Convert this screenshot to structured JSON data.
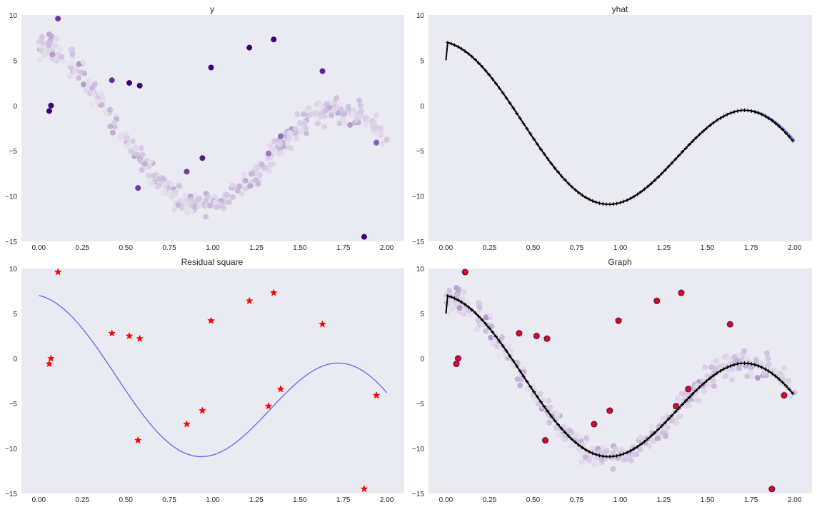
{
  "figure": {
    "panels": 4
  },
  "colors": {
    "plot_bg": "#eaeaf2",
    "grid": "#ffffff",
    "fit_line": "#6a6ef2",
    "predict_line": "#000000",
    "outlier_star": "#ff0000",
    "purple_light": "#efedf5",
    "purple_dark": "#3f007d"
  },
  "chart_data": [
    {
      "type": "scatter",
      "title": "y",
      "xlabel": "",
      "ylabel": "",
      "xlim": [
        -0.1,
        2.1
      ],
      "ylim": [
        -15,
        10
      ],
      "xticks": [
        "0.00",
        "0.25",
        "0.50",
        "0.75",
        "1.00",
        "1.25",
        "1.50",
        "1.75",
        "2.00"
      ],
      "yticks": [
        "10",
        "5",
        "0",
        "−5",
        "−10",
        "−15"
      ],
      "grid": false,
      "series": [
        {
          "kind": "noisy_points",
          "colormap": "Purples",
          "points_description_values": "dense band following y=f(x), x 0–2"
        },
        {
          "kind": "outliers",
          "colormap": "Purples",
          "x": [
            0.06,
            0.07,
            0.11,
            0.42,
            0.52,
            0.57,
            0.58,
            0.85,
            0.94,
            0.99,
            1.21,
            1.32,
            1.35,
            1.39,
            1.63,
            1.87,
            1.94
          ],
          "y": [
            -0.6,
            0.0,
            9.6,
            2.8,
            2.5,
            -9.1,
            2.2,
            -7.3,
            -5.8,
            4.2,
            6.4,
            -5.3,
            7.3,
            -3.4,
            3.8,
            -14.5,
            -4.1
          ]
        }
      ]
    },
    {
      "type": "line",
      "title": "yhat",
      "xlabel": "",
      "ylabel": "",
      "xlim": [
        -0.1,
        2.1
      ],
      "ylim": [
        -15,
        10
      ],
      "xticks": [
        "0.00",
        "0.25",
        "0.50",
        "0.75",
        "1.00",
        "1.25",
        "1.50",
        "1.75",
        "2.00"
      ],
      "yticks": [
        "10",
        "5",
        "0",
        "−5",
        "−10",
        "−15"
      ],
      "grid": false,
      "series": [
        {
          "kind": "true_curve",
          "color": "#6a6ef2"
        },
        {
          "kind": "predicted_curve_with_markers",
          "color": "#000000"
        }
      ]
    },
    {
      "type": "scatter",
      "title": "Residual square",
      "xlabel": "",
      "ylabel": "",
      "xlim": [
        -0.1,
        2.1
      ],
      "ylim": [
        -15,
        10
      ],
      "xticks": [
        "0.00",
        "0.25",
        "0.50",
        "0.75",
        "1.00",
        "1.25",
        "1.50",
        "1.75",
        "2.00"
      ],
      "yticks": [
        "10",
        "5",
        "0",
        "−5",
        "−10",
        "−15"
      ],
      "grid": false,
      "series": [
        {
          "kind": "true_curve",
          "color": "#6a6ef2"
        },
        {
          "kind": "outlier_stars",
          "color": "#ff0000",
          "x": [
            0.06,
            0.07,
            0.11,
            0.42,
            0.52,
            0.57,
            0.58,
            0.85,
            0.94,
            0.99,
            1.21,
            1.32,
            1.35,
            1.39,
            1.63,
            1.87,
            1.94
          ],
          "y": [
            -0.6,
            0.0,
            9.6,
            2.8,
            2.5,
            -9.1,
            2.2,
            -7.3,
            -5.8,
            4.2,
            6.4,
            -5.3,
            7.3,
            -3.4,
            3.8,
            -14.5,
            -4.1
          ]
        }
      ]
    },
    {
      "type": "scatter",
      "title": "Graph",
      "xlabel": "",
      "ylabel": "",
      "xlim": [
        -0.1,
        2.1
      ],
      "ylim": [
        -15,
        10
      ],
      "xticks": [
        "0.00",
        "0.25",
        "0.50",
        "0.75",
        "1.00",
        "1.25",
        "1.50",
        "1.75",
        "2.00"
      ],
      "yticks": [
        "10",
        "5",
        "0",
        "−5",
        "−10",
        "−15"
      ],
      "grid": false,
      "series": [
        {
          "kind": "noisy_points",
          "colormap": "Purples"
        },
        {
          "kind": "predicted_curve_with_markers",
          "color": "#000000"
        },
        {
          "kind": "outliers_blue",
          "color": "#1f1f8f",
          "x": [
            0.06,
            0.07,
            0.11,
            0.42,
            0.52,
            0.57,
            0.58,
            0.85,
            0.94,
            0.99,
            1.21,
            1.32,
            1.35,
            1.39,
            1.63,
            1.87,
            1.94
          ],
          "y": [
            -0.6,
            0.0,
            9.6,
            2.8,
            2.5,
            -9.1,
            2.2,
            -7.3,
            -5.8,
            4.2,
            6.4,
            -5.3,
            7.3,
            -3.4,
            3.8,
            -14.5,
            -4.1
          ]
        },
        {
          "kind": "outlier_stars",
          "color": "#ff0000",
          "x": [
            0.06,
            0.07,
            0.11,
            0.42,
            0.52,
            0.57,
            0.58,
            0.85,
            0.94,
            0.99,
            1.21,
            1.32,
            1.35,
            1.39,
            1.63,
            1.87,
            1.94
          ],
          "y": [
            -0.6,
            0.0,
            9.6,
            2.8,
            2.5,
            -9.1,
            2.2,
            -7.3,
            -5.8,
            4.2,
            6.4,
            -5.3,
            7.3,
            -3.4,
            3.8,
            -14.5,
            -4.1
          ]
        }
      ]
    }
  ]
}
